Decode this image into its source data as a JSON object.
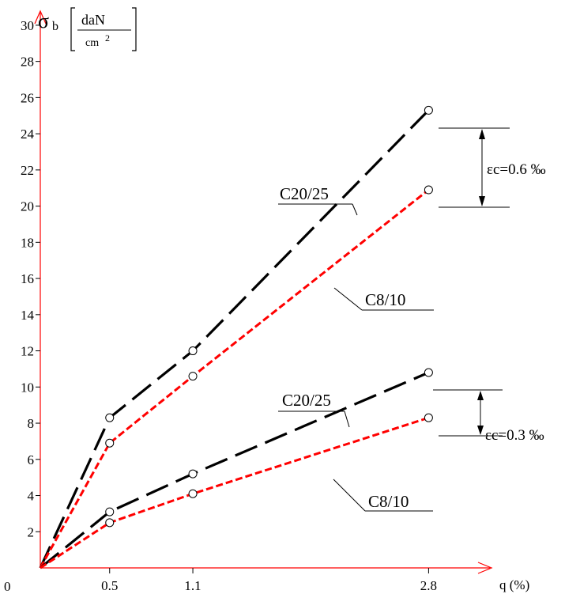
{
  "chart_data": {
    "type": "line",
    "y_axis": {
      "symbol": "σ",
      "subscript": "b",
      "unit_numerator": "daN",
      "unit_denominator": "cm",
      "unit_exponent": "2",
      "ticks": [
        "0",
        "2",
        "4",
        "6",
        "8",
        "10",
        "12",
        "14",
        "16",
        "18",
        "20",
        "22",
        "24",
        "26",
        "28",
        "30"
      ],
      "ylim": [
        0,
        30
      ]
    },
    "x_axis": {
      "label": "q (%)",
      "ticks": [
        "0.5",
        "1.1",
        "2.8"
      ],
      "xlim": [
        0,
        3.2
      ]
    },
    "origin_label": "0",
    "groups": [
      {
        "strain_label": "εc=0.6 ‰",
        "series": [
          {
            "name": "C20/25",
            "color": "#000000",
            "points": [
              [
                0,
                0
              ],
              [
                0.5,
                8.3
              ],
              [
                1.1,
                12.0
              ],
              [
                2.8,
                25.3
              ]
            ]
          },
          {
            "name": "C8/10",
            "color": "#ff0000",
            "points": [
              [
                0,
                0
              ],
              [
                0.5,
                6.9
              ],
              [
                1.1,
                10.6
              ],
              [
                2.8,
                20.9
              ]
            ]
          }
        ]
      },
      {
        "strain_label": "εc=0.3 ‰",
        "series": [
          {
            "name": "C20/25",
            "color": "#000000",
            "points": [
              [
                0,
                0
              ],
              [
                0.5,
                3.1
              ],
              [
                1.1,
                5.2
              ],
              [
                2.8,
                10.8
              ]
            ]
          },
          {
            "name": "C8/10",
            "color": "#ff0000",
            "points": [
              [
                0,
                0
              ],
              [
                0.5,
                2.5
              ],
              [
                1.1,
                4.1
              ],
              [
                2.8,
                8.3
              ]
            ]
          }
        ]
      }
    ],
    "axis_color": "#ff0000",
    "grid": false
  }
}
